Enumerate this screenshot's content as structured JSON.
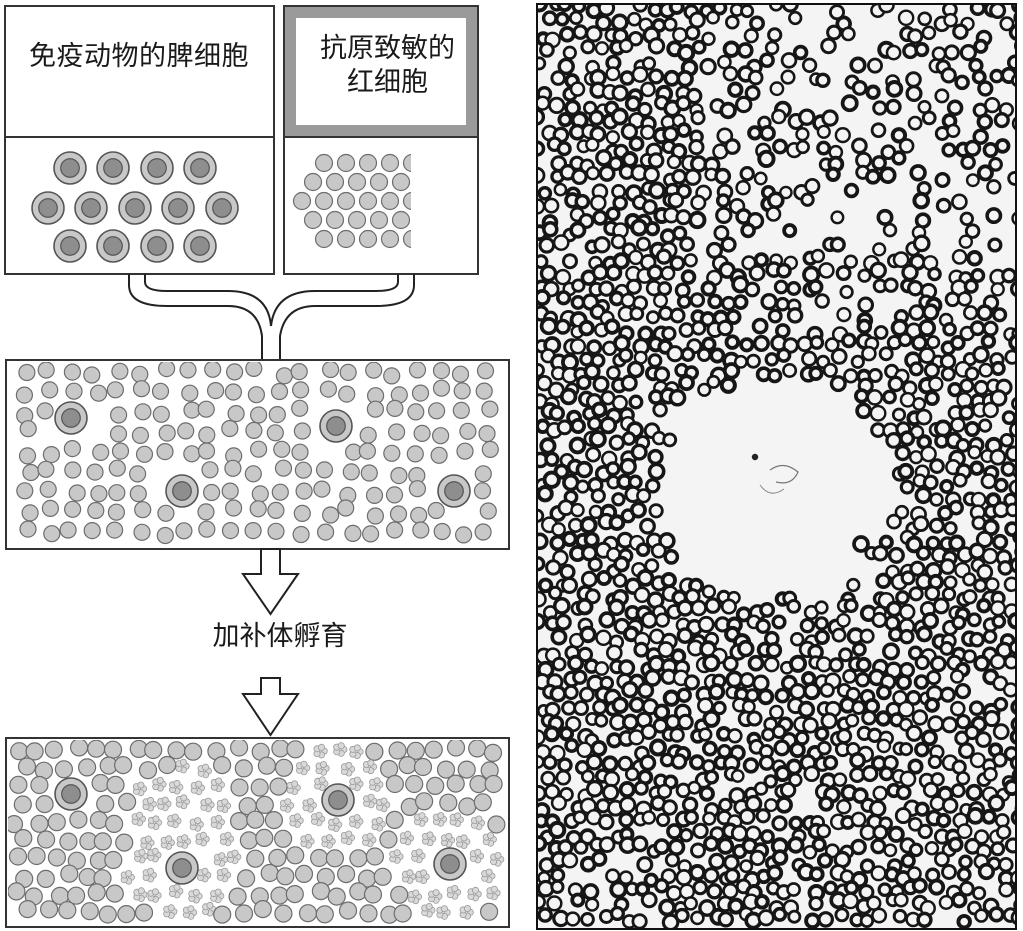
{
  "labels": {
    "spleen_cells": "免疫动物的脾细胞",
    "rbc_line1": "抗原致敏的",
    "rbc_line2": "红细胞",
    "step": "加补体孵育"
  },
  "colors": {
    "panel_stroke": "#333333",
    "header_gray": "#9a9a9a",
    "cell_fill": "#c8c8c8",
    "cell_stroke": "#6d6d6d",
    "nucleus_fill": "#8e8e8e",
    "lysed_fill": "#d9d9d9",
    "micrograph_bg": "#f4f4f4",
    "micrograph_cell": "#161616"
  },
  "counts": {
    "plaques_in_micrograph": 1
  }
}
